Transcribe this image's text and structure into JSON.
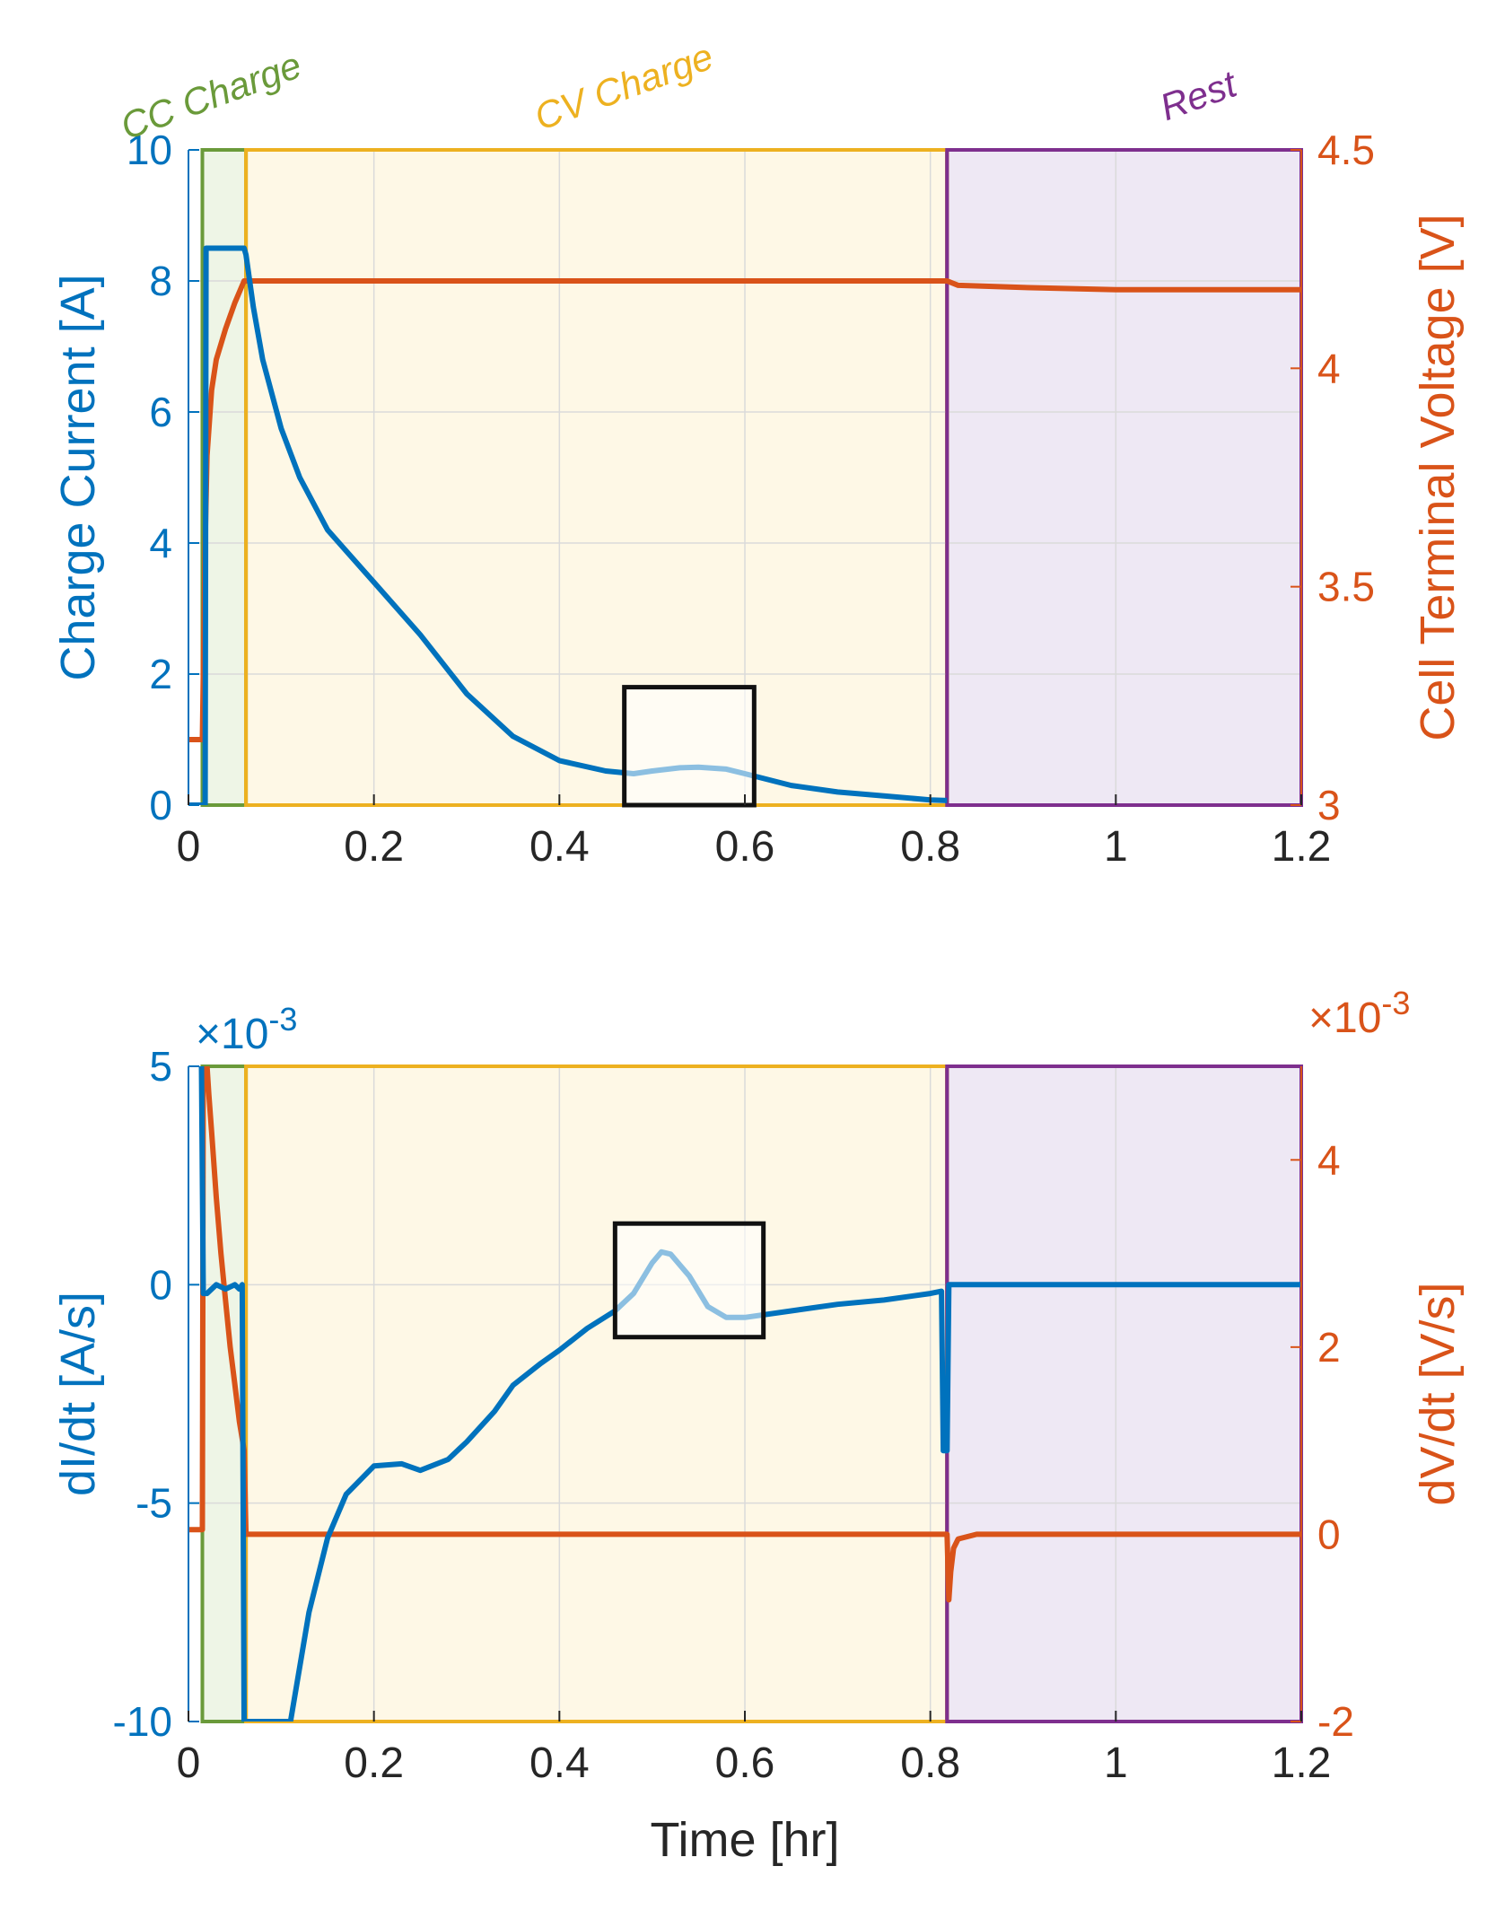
{
  "phases": [
    {
      "name": "CC Charge",
      "start": 0.015,
      "end": 0.062,
      "color": "#6A9A3A",
      "fill": "#EEF5E6"
    },
    {
      "name": "CV Charge",
      "start": 0.062,
      "end": 0.818,
      "color": "#EDB120",
      "fill": "#FEF8E6"
    },
    {
      "name": "Rest",
      "start": 0.818,
      "end": 1.2,
      "color": "#7E2F8E",
      "fill": "#EEE8F4"
    }
  ],
  "colors": {
    "current": "#0072BD",
    "voltage": "#D95319",
    "grid": "#DADADA",
    "box": "#111111"
  },
  "chart_data": [
    {
      "type": "line",
      "title": "",
      "xlabel": "",
      "ylabel_left": "Charge Current [A]",
      "ylabel_right": "Cell Terminal Voltage [V]",
      "xlim": [
        0,
        1.2
      ],
      "ylim_left": [
        0,
        10
      ],
      "ylim_right": [
        3,
        4.5
      ],
      "xticks": [
        0,
        0.2,
        0.4,
        0.6,
        0.8,
        1,
        1.2
      ],
      "xtick_labels": [
        "0",
        "0.2",
        "0.4",
        "0.6",
        "0.8",
        "1",
        "1.2"
      ],
      "yticks_left": [
        0,
        2,
        4,
        6,
        8,
        10
      ],
      "ytick_labels_left": [
        "0",
        "2",
        "4",
        "6",
        "8",
        "10"
      ],
      "yticks_right": [
        3,
        3.5,
        4,
        4.5
      ],
      "ytick_labels_right": [
        "3",
        "3.5",
        "4",
        "4.5"
      ],
      "grid": true,
      "highlight_box": {
        "x": [
          0.47,
          0.61
        ],
        "y": [
          0,
          1.8
        ],
        "axis": "left"
      },
      "series": [
        {
          "name": "Charge Current",
          "axis": "left",
          "x": [
            0,
            0.018,
            0.019,
            0.02,
            0.06,
            0.062,
            0.07,
            0.08,
            0.1,
            0.12,
            0.15,
            0.2,
            0.25,
            0.3,
            0.35,
            0.4,
            0.45,
            0.48,
            0.5,
            0.53,
            0.55,
            0.58,
            0.6,
            0.65,
            0.7,
            0.75,
            0.8,
            0.818
          ],
          "y": [
            0,
            0,
            8.5,
            8.5,
            8.5,
            8.4,
            7.6,
            6.8,
            5.75,
            5.0,
            4.2,
            3.4,
            2.6,
            1.7,
            1.05,
            0.68,
            0.52,
            0.48,
            0.52,
            0.57,
            0.58,
            0.55,
            0.48,
            0.3,
            0.2,
            0.14,
            0.08,
            0.07
          ]
        },
        {
          "name": "Cell Terminal Voltage",
          "axis": "right",
          "x": [
            0,
            0.015,
            0.018,
            0.02,
            0.025,
            0.03,
            0.04,
            0.05,
            0.06,
            0.062,
            0.1,
            0.3,
            0.5,
            0.7,
            0.818,
            0.83,
            0.9,
            1.0,
            1.1,
            1.2
          ],
          "y": [
            3.15,
            3.15,
            3.6,
            3.8,
            3.95,
            4.02,
            4.09,
            4.15,
            4.2,
            4.2,
            4.2,
            4.2,
            4.2,
            4.2,
            4.2,
            4.19,
            4.185,
            4.18,
            4.18,
            4.18
          ]
        }
      ]
    },
    {
      "type": "line",
      "title": "",
      "xlabel": "Time [hr]",
      "ylabel_left": "dI/dt [A/s]",
      "ylabel_right": "dV/dt [V/s]",
      "exponent_left": "×10^-3",
      "exponent_right": "×10^-3",
      "xlim": [
        0,
        1.2
      ],
      "ylim_left": [
        -10,
        5
      ],
      "ylim_right": [
        -2,
        5
      ],
      "xticks": [
        0,
        0.2,
        0.4,
        0.6,
        0.8,
        1,
        1.2
      ],
      "xtick_labels": [
        "0",
        "0.2",
        "0.4",
        "0.6",
        "0.8",
        "1",
        "1.2"
      ],
      "yticks_left": [
        -10,
        -5,
        0,
        5
      ],
      "ytick_labels_left": [
        "-10",
        "-5",
        "0",
        "5"
      ],
      "yticks_right": [
        -2,
        0,
        2,
        4
      ],
      "ytick_labels_right": [
        "-2",
        "0",
        "2",
        "4"
      ],
      "grid": true,
      "highlight_box": {
        "x": [
          0.46,
          0.62
        ],
        "y": [
          -1.2,
          1.4
        ],
        "axis": "left"
      },
      "series": [
        {
          "name": "dI/dt",
          "axis": "left",
          "x": [
            0.012,
            0.014,
            0.016,
            0.02,
            0.03,
            0.04,
            0.05,
            0.055,
            0.058,
            0.06,
            0.11,
            0.13,
            0.15,
            0.17,
            0.2,
            0.23,
            0.25,
            0.28,
            0.3,
            0.33,
            0.35,
            0.38,
            0.4,
            0.43,
            0.46,
            0.48,
            0.5,
            0.51,
            0.52,
            0.54,
            0.56,
            0.58,
            0.6,
            0.65,
            0.7,
            0.75,
            0.8,
            0.812,
            0.814,
            0.818,
            0.82,
            0.9,
            1.0,
            1.1,
            1.2
          ],
          "y": [
            5,
            5,
            -0.2,
            -0.2,
            0,
            -0.1,
            0,
            -0.1,
            0,
            -10,
            -10,
            -7.5,
            -5.8,
            -4.8,
            -4.15,
            -4.1,
            -4.25,
            -4.0,
            -3.6,
            -2.9,
            -2.3,
            -1.8,
            -1.5,
            -1.0,
            -0.6,
            -0.2,
            0.5,
            0.75,
            0.7,
            0.2,
            -0.5,
            -0.75,
            -0.75,
            -0.6,
            -0.45,
            -0.35,
            -0.2,
            -0.15,
            -3.8,
            -3.8,
            0,
            0,
            0,
            0,
            0
          ]
        },
        {
          "name": "dV/dt",
          "axis": "right",
          "x": [
            0,
            0.015,
            0.016,
            0.018,
            0.02,
            0.022,
            0.025,
            0.03,
            0.035,
            0.04,
            0.045,
            0.05,
            0.055,
            0.06,
            0.062,
            0.2,
            0.4,
            0.6,
            0.818,
            0.82,
            0.822,
            0.825,
            0.83,
            0.85,
            0.9,
            1.0,
            1.2
          ],
          "y": [
            0.05,
            0.05,
            5,
            5,
            5,
            4.7,
            4.3,
            3.6,
            3.0,
            2.5,
            2.0,
            1.6,
            1.2,
            0.9,
            0,
            0,
            0,
            0,
            0,
            -0.7,
            -0.4,
            -0.15,
            -0.05,
            0,
            0,
            0,
            0
          ]
        }
      ]
    }
  ]
}
